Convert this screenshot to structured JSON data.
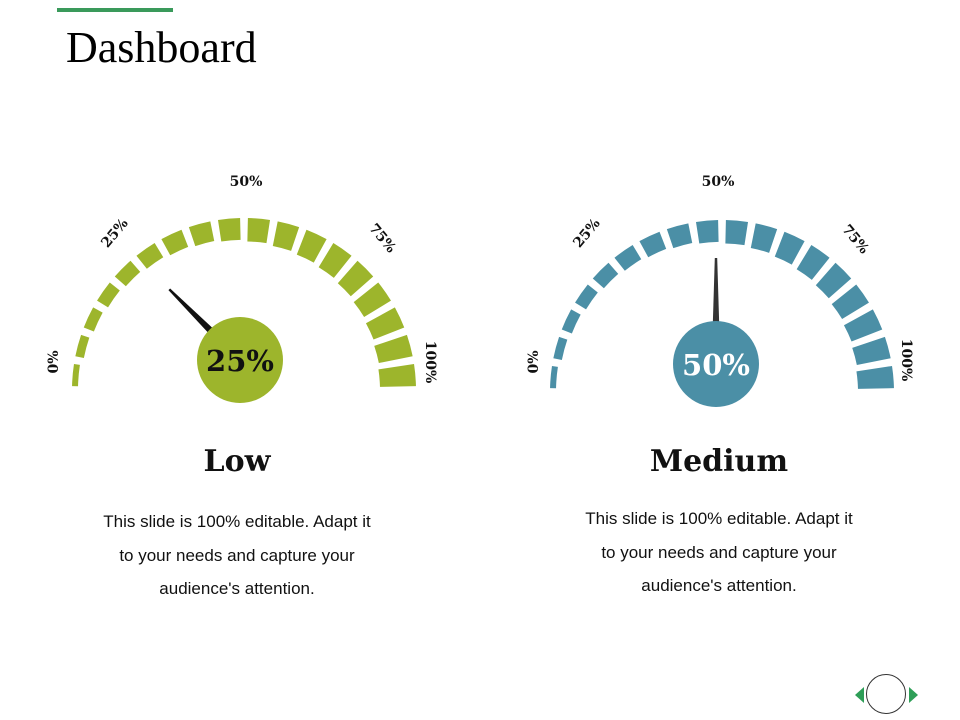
{
  "page": {
    "title": "Dashboard",
    "accent_color": "#3a9a5b"
  },
  "gauges": [
    {
      "id": "low",
      "value": 25,
      "center_label": "25%",
      "color": "#9db52c",
      "title": "Low",
      "description": "This slide is 100% editable. Adapt it to your needs and capture your audience's attention.",
      "ticks": {
        "t0": "0%",
        "t25": "25%",
        "t50": "50%",
        "t75": "75%",
        "t100": "100%"
      }
    },
    {
      "id": "medium",
      "value": 50,
      "center_label": "50%",
      "color": "#4b8fa6",
      "title": "Medium",
      "description": "This slide is 100% editable. Adapt it to your needs and capture your audience's attention.",
      "ticks": {
        "t0": "0%",
        "t25": "25%",
        "t50": "50%",
        "t75": "75%",
        "t100": "100%"
      }
    }
  ],
  "navigation": {
    "prev_icon": "triangle-left-icon",
    "home_icon": "circle-icon",
    "next_icon": "triangle-right-icon",
    "icon_color": "#2e9e57"
  }
}
